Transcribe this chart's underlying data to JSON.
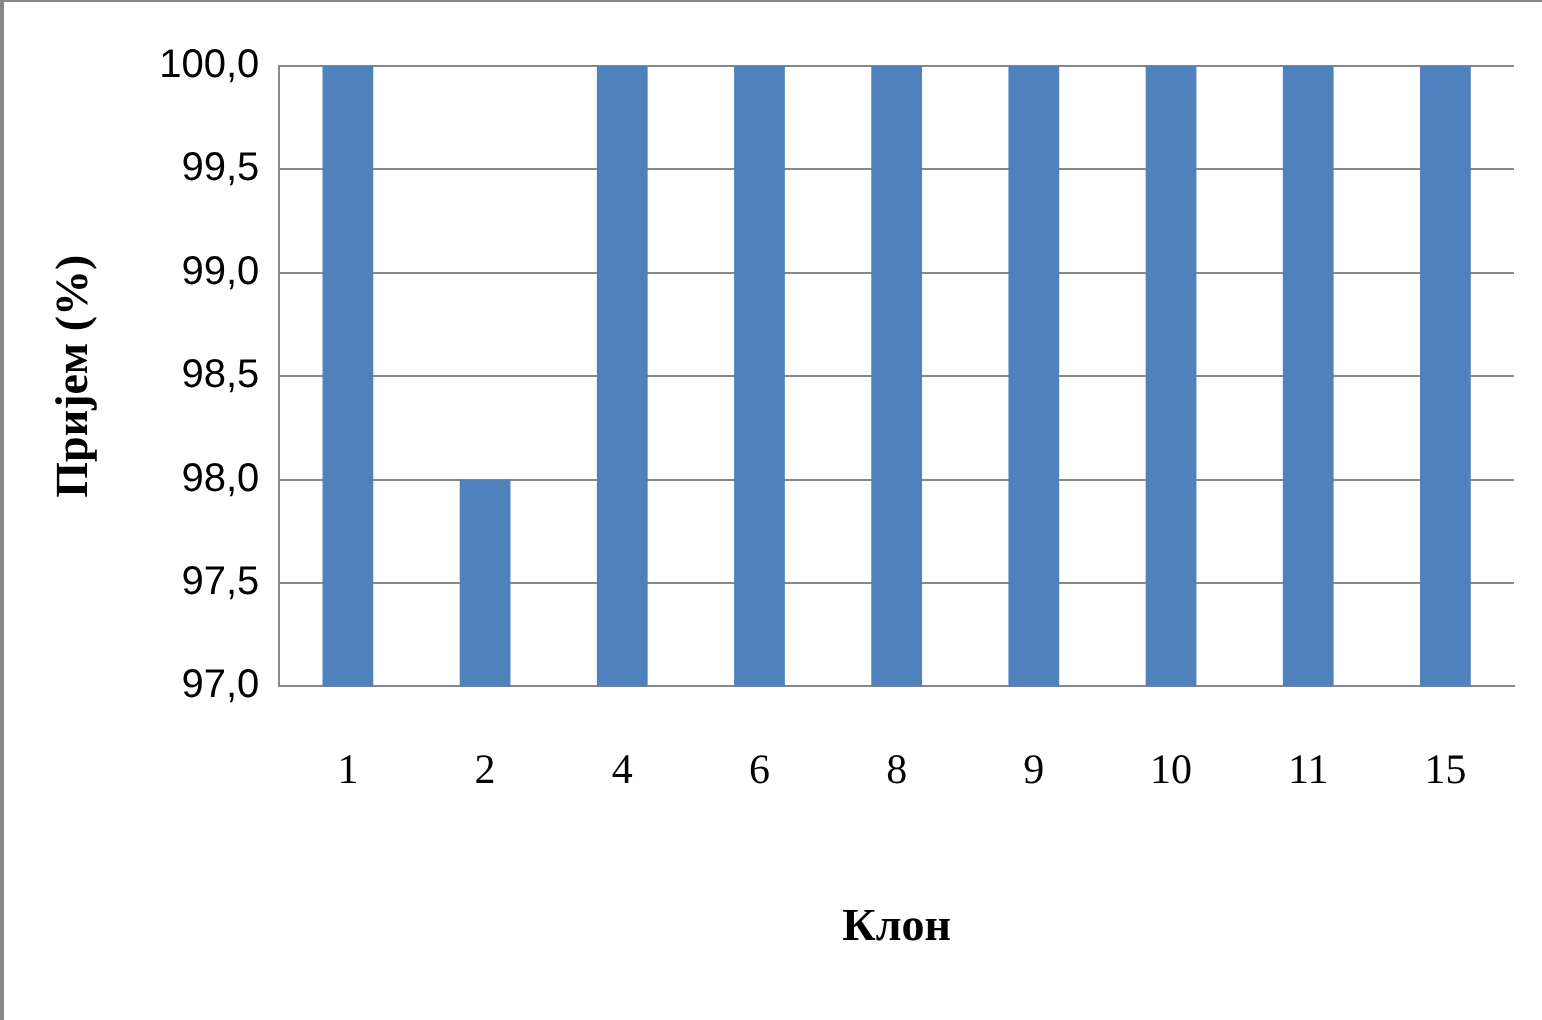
{
  "chart_data": {
    "type": "bar",
    "xlabel": "Клон",
    "ylabel": "Пријем (%)",
    "categories": [
      "1",
      "2",
      "4",
      "6",
      "8",
      "9",
      "10",
      "11",
      "15"
    ],
    "values": [
      100,
      98,
      100,
      100,
      100,
      100,
      100,
      100,
      100
    ],
    "color": "#4f81bd",
    "ylim": [
      97,
      100
    ],
    "yticks": [
      {
        "value": 97,
        "label": "97,0"
      },
      {
        "value": 97.5,
        "label": "97,5"
      },
      {
        "value": 98,
        "label": "98,0"
      },
      {
        "value": 98.5,
        "label": "98,5"
      },
      {
        "value": 99,
        "label": "99,0"
      },
      {
        "value": 99.5,
        "label": "99,5"
      },
      {
        "value": 100,
        "label": "100,0"
      }
    ],
    "grid": "y",
    "legend": false
  }
}
